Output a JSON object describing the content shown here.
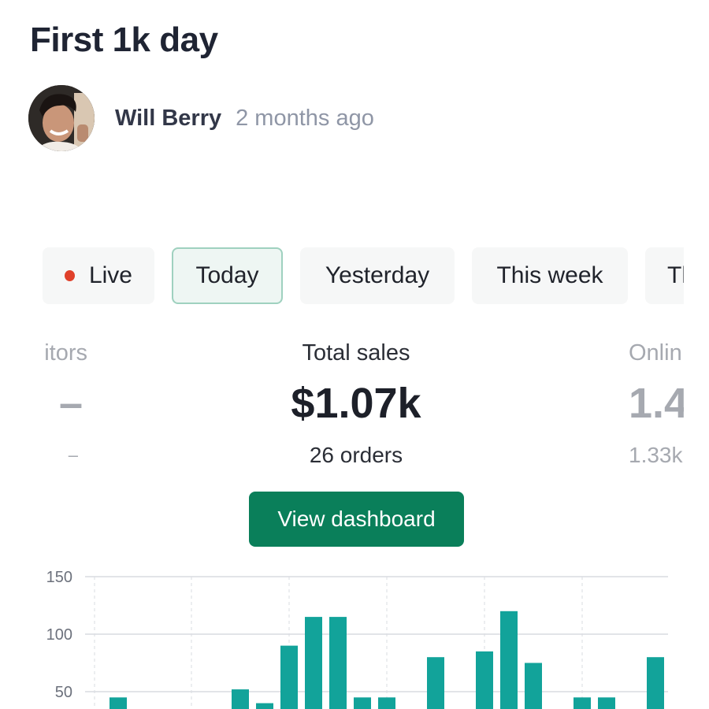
{
  "post": {
    "title": "First 1k day",
    "author": "Will Berry",
    "time": "2 months ago"
  },
  "tabs": [
    {
      "label": "Live",
      "state": "live"
    },
    {
      "label": "Today",
      "state": "selected"
    },
    {
      "label": "Yesterday",
      "state": "default"
    },
    {
      "label": "This week",
      "state": "default"
    },
    {
      "label": "Th",
      "state": "clipped"
    }
  ],
  "stats": {
    "left": {
      "label": "itors",
      "value": "–",
      "sub": "–"
    },
    "center": {
      "label": "Total sales",
      "value": "$1.07k",
      "sub": "26 orders"
    },
    "right": {
      "label": "Onlin",
      "value": "1.4",
      "sub": "1.33k"
    }
  },
  "button": {
    "label": "View dashboard"
  },
  "colors": {
    "accent": "#0a7f5a",
    "bar": "#12a39a",
    "live_dot": "#e0412b",
    "selected_tab_border": "#9fd1bf"
  },
  "chart_data": {
    "type": "bar",
    "yticks": [
      150,
      100,
      50
    ],
    "ylim": [
      0,
      150
    ],
    "values": [
      45,
      0,
      0,
      0,
      0,
      52,
      40,
      90,
      115,
      115,
      45,
      45,
      0,
      80,
      0,
      85,
      120,
      75,
      0,
      45,
      45,
      0,
      80
    ],
    "grid": true
  }
}
